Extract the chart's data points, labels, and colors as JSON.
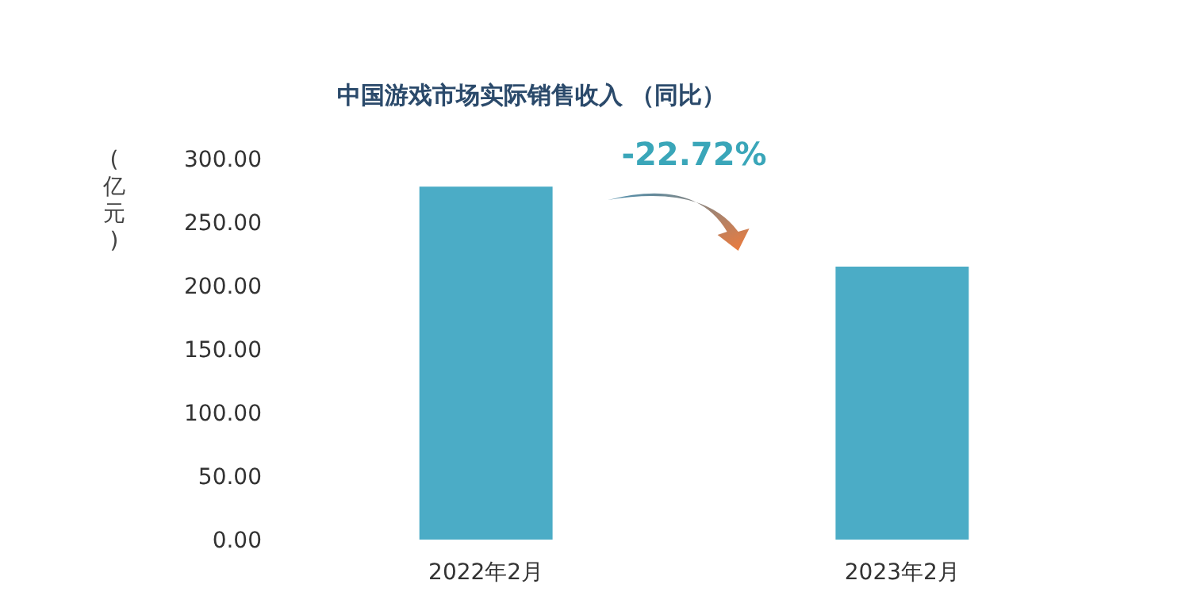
{
  "chart_data": {
    "type": "bar",
    "title": "中国游戏市场实际销售收入 （同比）",
    "ylabel": "(亿元)",
    "categories": [
      "2022年2月",
      "2023年2月"
    ],
    "values": [
      278,
      215
    ],
    "color": "#4bacc6",
    "ylim": [
      0,
      300
    ],
    "yticks": [
      {
        "value": 0,
        "label": "0.00"
      },
      {
        "value": 50,
        "label": "50.00"
      },
      {
        "value": 100,
        "label": "100.00"
      },
      {
        "value": 150,
        "label": "150.00"
      },
      {
        "value": 200,
        "label": "200.00"
      },
      {
        "value": 250,
        "label": "250.00"
      },
      {
        "value": 300,
        "label": "300.00"
      }
    ],
    "annotations": [
      "-22.72%"
    ],
    "grid": false
  }
}
